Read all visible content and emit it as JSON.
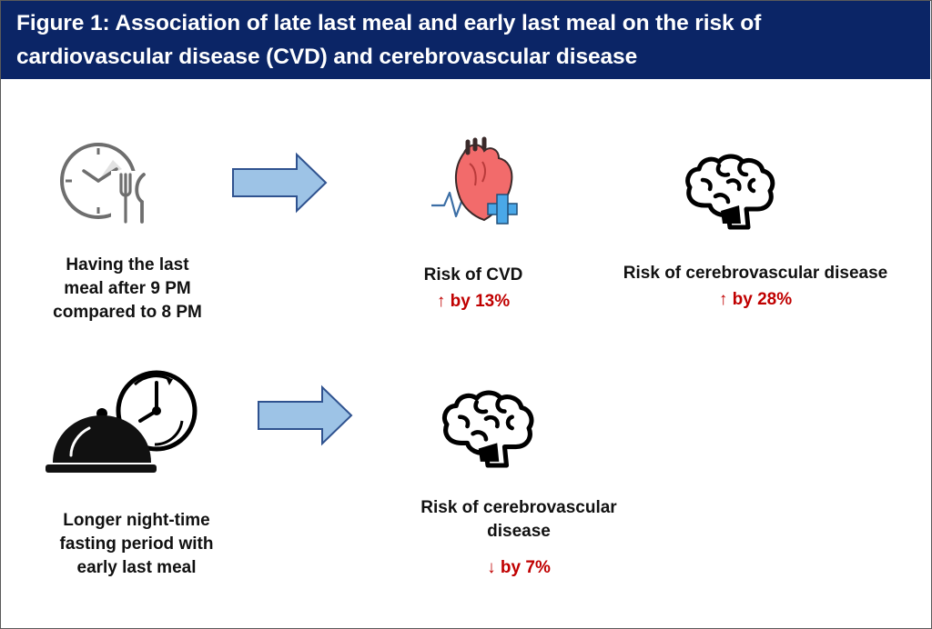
{
  "figure": {
    "title": "Figure 1: Association of late last meal and early last meal on the risk of cardiovascular disease (CVD) and cerebrovascular disease",
    "colors": {
      "header_bg": "#0b2566",
      "header_text": "#ffffff",
      "arrow_fill": "#9dc3e6",
      "arrow_stroke": "#2f528f",
      "risk_text": "#c00000",
      "heart_fill": "#f26b6b",
      "cross_fill": "#4aa8e8"
    }
  },
  "rows": [
    {
      "exposure": {
        "icon": "clock-fork-knife-icon",
        "label_lines": [
          "Having the last",
          "meal after 9 PM",
          "compared to 8 PM"
        ]
      },
      "outcomes": [
        {
          "icon": "heart-icon",
          "label": "Risk of CVD",
          "change": "↑ by 13%"
        },
        {
          "icon": "brain-icon",
          "label": "Risk of cerebrovascular disease",
          "change": "↑ by 28%"
        }
      ]
    },
    {
      "exposure": {
        "icon": "cloche-clock-icon",
        "label_lines": [
          "Longer night-time",
          "fasting period with",
          "early last meal"
        ]
      },
      "outcomes": [
        {
          "icon": "brain-icon",
          "label_lines": [
            "Risk of cerebrovascular",
            "disease"
          ],
          "change": "↓ by 7%"
        }
      ]
    }
  ]
}
